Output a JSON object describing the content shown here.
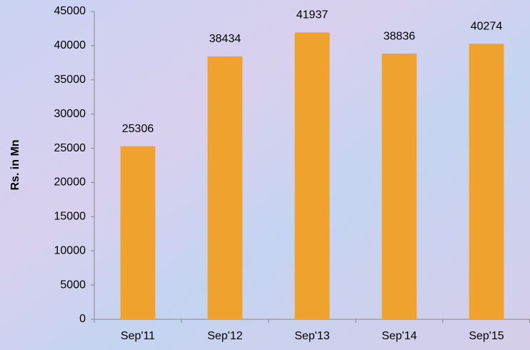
{
  "chart_data": {
    "type": "bar",
    "y_label": "Rs. in Mn",
    "categories": [
      "Sep'11",
      "Sep'12",
      "Sep'13",
      "Sep'14",
      "Sep'15"
    ],
    "values": [
      25306,
      38434,
      41937,
      38836,
      40274
    ],
    "color": "#f0a22e",
    "ylim": [
      0,
      45000
    ],
    "yticks": [
      0,
      5000,
      10000,
      15000,
      20000,
      25000,
      30000,
      35000,
      40000,
      45000
    ],
    "grid": false
  }
}
